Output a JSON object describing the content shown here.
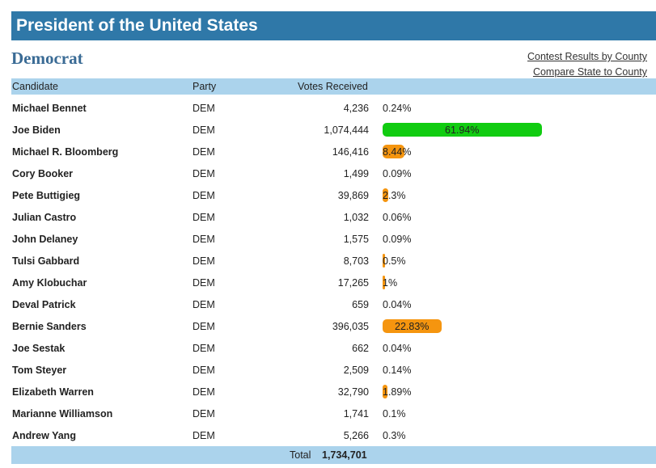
{
  "header": {
    "title": "President of the United States"
  },
  "party": {
    "name": "Democrat"
  },
  "links": {
    "contest_by_county": "Contest Results by County",
    "compare_state": "Compare State to County"
  },
  "table": {
    "columns": {
      "candidate": "Candidate",
      "party": "Party",
      "votes": "Votes Received"
    },
    "rows": [
      {
        "name": "Michael Bennet",
        "party": "DEM",
        "votes": "4,236",
        "pct": "0.24%",
        "pct_value": 0.24,
        "color": ""
      },
      {
        "name": "Joe Biden",
        "party": "DEM",
        "votes": "1,074,444",
        "pct": "61.94%",
        "pct_value": 61.94,
        "color": "#11cc11"
      },
      {
        "name": "Michael R. Bloomberg",
        "party": "DEM",
        "votes": "146,416",
        "pct": "8.44%",
        "pct_value": 8.44,
        "color": "#f5950f"
      },
      {
        "name": "Cory Booker",
        "party": "DEM",
        "votes": "1,499",
        "pct": "0.09%",
        "pct_value": 0.09,
        "color": ""
      },
      {
        "name": "Pete Buttigieg",
        "party": "DEM",
        "votes": "39,869",
        "pct": "2.3%",
        "pct_value": 2.3,
        "color": "#f5950f"
      },
      {
        "name": "Julian Castro",
        "party": "DEM",
        "votes": "1,032",
        "pct": "0.06%",
        "pct_value": 0.06,
        "color": ""
      },
      {
        "name": "John Delaney",
        "party": "DEM",
        "votes": "1,575",
        "pct": "0.09%",
        "pct_value": 0.09,
        "color": ""
      },
      {
        "name": "Tulsi Gabbard",
        "party": "DEM",
        "votes": "8,703",
        "pct": "0.5%",
        "pct_value": 0.5,
        "color": "#f5950f"
      },
      {
        "name": "Amy Klobuchar",
        "party": "DEM",
        "votes": "17,265",
        "pct": "1%",
        "pct_value": 1.0,
        "color": "#f5950f"
      },
      {
        "name": "Deval Patrick",
        "party": "DEM",
        "votes": "659",
        "pct": "0.04%",
        "pct_value": 0.04,
        "color": ""
      },
      {
        "name": "Bernie Sanders",
        "party": "DEM",
        "votes": "396,035",
        "pct": "22.83%",
        "pct_value": 22.83,
        "color": "#f5950f"
      },
      {
        "name": "Joe Sestak",
        "party": "DEM",
        "votes": "662",
        "pct": "0.04%",
        "pct_value": 0.04,
        "color": ""
      },
      {
        "name": "Tom Steyer",
        "party": "DEM",
        "votes": "2,509",
        "pct": "0.14%",
        "pct_value": 0.14,
        "color": ""
      },
      {
        "name": "Elizabeth Warren",
        "party": "DEM",
        "votes": "32,790",
        "pct": "1.89%",
        "pct_value": 1.89,
        "color": "#f5950f"
      },
      {
        "name": "Marianne Williamson",
        "party": "DEM",
        "votes": "1,741",
        "pct": "0.1%",
        "pct_value": 0.1,
        "color": ""
      },
      {
        "name": "Andrew Yang",
        "party": "DEM",
        "votes": "5,266",
        "pct": "0.3%",
        "pct_value": 0.3,
        "color": ""
      }
    ],
    "total_label": "Total",
    "total_value": "1,734,701"
  }
}
